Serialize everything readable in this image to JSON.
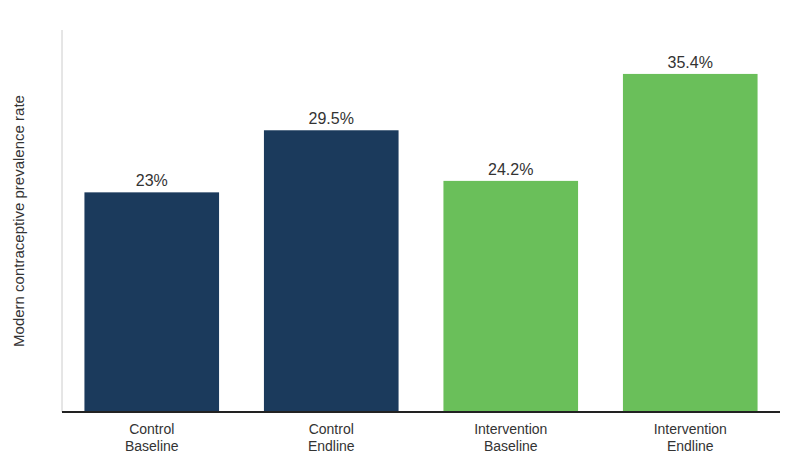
{
  "chart_data": {
    "type": "bar",
    "categories": [
      "Control\nBaseline",
      "Control\nEndline",
      "Intervention\nBaseline",
      "Intervention\nEndline"
    ],
    "values": [
      23.0,
      29.5,
      24.2,
      35.4
    ],
    "value_labels": [
      "23%",
      "29.5%",
      "24.2%",
      "35.4%"
    ],
    "colors": [
      "#1b3a5c",
      "#1b3a5c",
      "#6abf5a",
      "#6abf5a"
    ],
    "ylabel": "Modern contraceptive prevalence rate",
    "ylim": [
      0,
      40
    ],
    "data_labels": true,
    "tick_labels": "x",
    "grid": false
  }
}
